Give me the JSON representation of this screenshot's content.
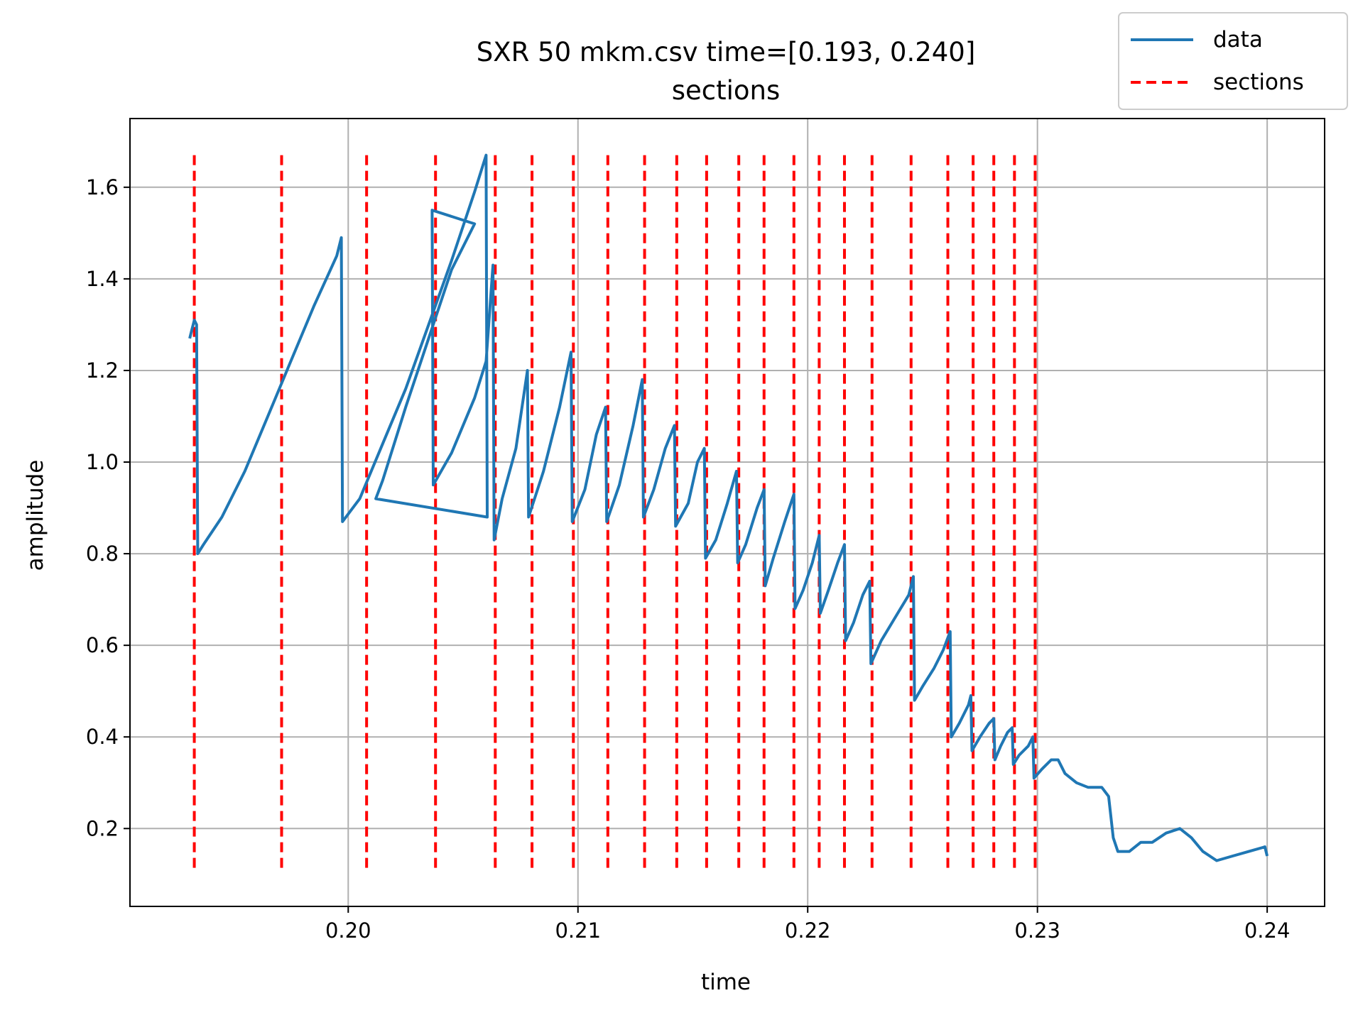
{
  "chart_data": {
    "type": "line",
    "title": "SXR 50 mkm.csv time=[0.193, 0.240]",
    "subtitle": "sections",
    "xlabel": "time",
    "ylabel": "amplitude",
    "xlim": [
      0.1905,
      0.2425
    ],
    "ylim": [
      0.03,
      1.75
    ],
    "x_ticks": [
      {
        "value": 0.2,
        "label": "0.20"
      },
      {
        "value": 0.21,
        "label": "0.21"
      },
      {
        "value": 0.22,
        "label": "0.22"
      },
      {
        "value": 0.23,
        "label": "0.23"
      },
      {
        "value": 0.24,
        "label": "0.24"
      }
    ],
    "y_ticks": [
      {
        "value": 0.2,
        "label": "0.2"
      },
      {
        "value": 0.4,
        "label": "0.4"
      },
      {
        "value": 0.6,
        "label": "0.6"
      },
      {
        "value": 0.8,
        "label": "0.8"
      },
      {
        "value": 1.0,
        "label": "1.0"
      },
      {
        "value": 1.2,
        "label": "1.2"
      },
      {
        "value": 1.4,
        "label": "1.4"
      },
      {
        "value": 1.6,
        "label": "1.6"
      }
    ],
    "grid": true,
    "legend": {
      "placement": "top-right",
      "entries": [
        {
          "label": "data",
          "style": "solid",
          "color": "#1f77b4"
        },
        {
          "label": "sections",
          "style": "dashed",
          "color": "#ff0000"
        }
      ]
    },
    "series": [
      {
        "name": "data",
        "color": "#1f77b4",
        "points": [
          [
            0.1931,
            1.27
          ],
          [
            0.1932,
            1.29
          ],
          [
            0.1933,
            1.31
          ],
          [
            0.1934,
            1.3
          ],
          [
            0.19345,
            0.8
          ],
          [
            0.1937,
            0.82
          ],
          [
            0.1945,
            0.88
          ],
          [
            0.1955,
            0.98
          ],
          [
            0.1965,
            1.1
          ],
          [
            0.1975,
            1.22
          ],
          [
            0.1985,
            1.34
          ],
          [
            0.1995,
            1.45
          ],
          [
            0.1997,
            1.49
          ],
          [
            0.19975,
            0.87
          ],
          [
            0.2005,
            0.92
          ],
          [
            0.2015,
            1.04
          ],
          [
            0.2025,
            1.16
          ],
          [
            0.2035,
            1.3
          ],
          [
            0.2045,
            1.44
          ],
          [
            0.2055,
            1.59
          ],
          [
            0.206,
            1.67
          ],
          [
            0.20605,
            0.88
          ],
          [
            0.2012,
            0.92
          ],
          [
            0.2015,
            0.96
          ],
          [
            0.2025,
            1.12
          ],
          [
            0.2035,
            1.27
          ],
          [
            0.2045,
            1.42
          ],
          [
            0.2055,
            1.52
          ],
          [
            0.20365,
            1.55
          ],
          [
            0.2037,
            0.95
          ],
          [
            0.2045,
            1.02
          ],
          [
            0.2055,
            1.14
          ],
          [
            0.206,
            1.22
          ],
          [
            0.2063,
            1.43
          ],
          [
            0.20635,
            0.83
          ],
          [
            0.2067,
            0.92
          ],
          [
            0.2073,
            1.03
          ],
          [
            0.2078,
            1.2
          ],
          [
            0.20785,
            0.88
          ],
          [
            0.2085,
            0.98
          ],
          [
            0.2092,
            1.12
          ],
          [
            0.2097,
            1.24
          ],
          [
            0.20975,
            0.87
          ],
          [
            0.2103,
            0.94
          ],
          [
            0.2108,
            1.06
          ],
          [
            0.2112,
            1.12
          ],
          [
            0.21125,
            0.87
          ],
          [
            0.2118,
            0.95
          ],
          [
            0.2124,
            1.08
          ],
          [
            0.2128,
            1.18
          ],
          [
            0.21285,
            0.88
          ],
          [
            0.2133,
            0.94
          ],
          [
            0.2138,
            1.03
          ],
          [
            0.2142,
            1.08
          ],
          [
            0.21425,
            0.86
          ],
          [
            0.2148,
            0.91
          ],
          [
            0.2152,
            1.0
          ],
          [
            0.2155,
            1.03
          ],
          [
            0.21555,
            0.79
          ],
          [
            0.216,
            0.83
          ],
          [
            0.2165,
            0.91
          ],
          [
            0.2169,
            0.98
          ],
          [
            0.21695,
            0.78
          ],
          [
            0.2173,
            0.82
          ],
          [
            0.2178,
            0.9
          ],
          [
            0.2181,
            0.94
          ],
          [
            0.21815,
            0.73
          ],
          [
            0.2185,
            0.79
          ],
          [
            0.219,
            0.87
          ],
          [
            0.2194,
            0.93
          ],
          [
            0.21945,
            0.68
          ],
          [
            0.2198,
            0.72
          ],
          [
            0.2202,
            0.78
          ],
          [
            0.2205,
            0.84
          ],
          [
            0.22055,
            0.67
          ],
          [
            0.2209,
            0.72
          ],
          [
            0.2213,
            0.78
          ],
          [
            0.2216,
            0.82
          ],
          [
            0.22165,
            0.61
          ],
          [
            0.222,
            0.65
          ],
          [
            0.2224,
            0.71
          ],
          [
            0.2227,
            0.74
          ],
          [
            0.22275,
            0.56
          ],
          [
            0.2232,
            0.61
          ],
          [
            0.2238,
            0.66
          ],
          [
            0.2244,
            0.71
          ],
          [
            0.2246,
            0.75
          ],
          [
            0.22465,
            0.48
          ],
          [
            0.225,
            0.51
          ],
          [
            0.2255,
            0.55
          ],
          [
            0.2259,
            0.59
          ],
          [
            0.2262,
            0.63
          ],
          [
            0.22625,
            0.4
          ],
          [
            0.2266,
            0.43
          ],
          [
            0.227,
            0.47
          ],
          [
            0.2271,
            0.49
          ],
          [
            0.22715,
            0.37
          ],
          [
            0.2275,
            0.4
          ],
          [
            0.2279,
            0.43
          ],
          [
            0.2281,
            0.44
          ],
          [
            0.22815,
            0.35
          ],
          [
            0.2284,
            0.38
          ],
          [
            0.2287,
            0.41
          ],
          [
            0.2289,
            0.42
          ],
          [
            0.22895,
            0.34
          ],
          [
            0.2292,
            0.36
          ],
          [
            0.2296,
            0.38
          ],
          [
            0.2298,
            0.4
          ],
          [
            0.22985,
            0.31
          ],
          [
            0.2302,
            0.33
          ],
          [
            0.2306,
            0.35
          ],
          [
            0.2309,
            0.35
          ],
          [
            0.2312,
            0.32
          ],
          [
            0.2317,
            0.3
          ],
          [
            0.2322,
            0.29
          ],
          [
            0.2328,
            0.29
          ],
          [
            0.2331,
            0.27
          ],
          [
            0.2333,
            0.18
          ],
          [
            0.2335,
            0.15
          ],
          [
            0.234,
            0.15
          ],
          [
            0.2345,
            0.17
          ],
          [
            0.235,
            0.17
          ],
          [
            0.2356,
            0.19
          ],
          [
            0.2362,
            0.2
          ],
          [
            0.2367,
            0.18
          ],
          [
            0.2372,
            0.15
          ],
          [
            0.2378,
            0.13
          ],
          [
            0.2385,
            0.14
          ],
          [
            0.2392,
            0.15
          ],
          [
            0.2399,
            0.16
          ],
          [
            0.24,
            0.14
          ]
        ]
      },
      {
        "name": "sections",
        "color": "#ff0000",
        "style": "dashed",
        "y_range": [
          0.11,
          1.67
        ],
        "x_positions": [
          0.1933,
          0.1971,
          0.2008,
          0.2038,
          0.2064,
          0.208,
          0.2098,
          0.2113,
          0.2129,
          0.2143,
          0.2156,
          0.217,
          0.2181,
          0.2194,
          0.2205,
          0.2216,
          0.2228,
          0.2245,
          0.2261,
          0.2272,
          0.2281,
          0.229,
          0.2299
        ]
      }
    ]
  }
}
